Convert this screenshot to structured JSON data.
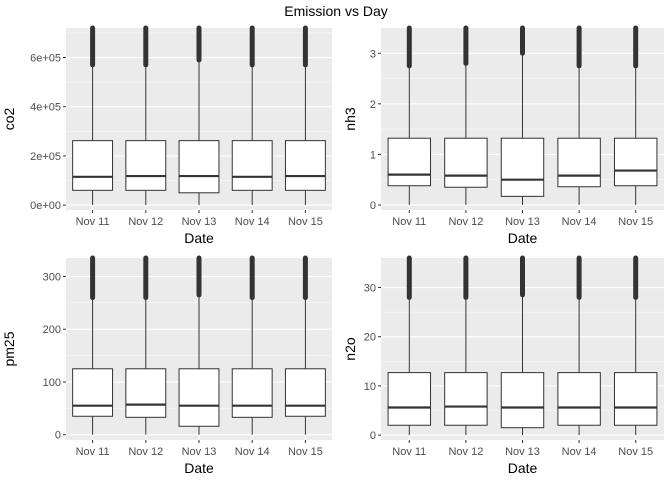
{
  "figure": {
    "title": "Emission vs Day"
  },
  "chart_data": [
    {
      "type": "boxplot",
      "ylabel": "co2",
      "xlabel": "Date",
      "categories": [
        "Nov 11",
        "Nov 12",
        "Nov 13",
        "Nov 14",
        "Nov 15"
      ],
      "ylim": [
        -20000,
        720000
      ],
      "yticks": [
        0,
        200000,
        400000,
        600000
      ],
      "ytick_labels": [
        "0e+00",
        "2e+05",
        "4e+05",
        "6e+05"
      ],
      "boxes": [
        {
          "q1": 60000,
          "median": 115000,
          "q3": 262000,
          "whisker_low": 0,
          "whisker_high": 570000,
          "outlier_top": 720000
        },
        {
          "q1": 60000,
          "median": 118000,
          "q3": 262000,
          "whisker_low": 0,
          "whisker_high": 570000,
          "outlier_top": 720000
        },
        {
          "q1": 50000,
          "median": 118000,
          "q3": 262000,
          "whisker_low": 0,
          "whisker_high": 590000,
          "outlier_top": 720000
        },
        {
          "q1": 60000,
          "median": 115000,
          "q3": 262000,
          "whisker_low": 0,
          "whisker_high": 570000,
          "outlier_top": 720000
        },
        {
          "q1": 60000,
          "median": 118000,
          "q3": 262000,
          "whisker_low": 0,
          "whisker_high": 570000,
          "outlier_top": 720000
        }
      ]
    },
    {
      "type": "boxplot",
      "ylabel": "nh3",
      "xlabel": "Date",
      "categories": [
        "Nov 11",
        "Nov 12",
        "Nov 13",
        "Nov 14",
        "Nov 15"
      ],
      "ylim": [
        -0.1,
        3.5
      ],
      "yticks": [
        0,
        1,
        2,
        3
      ],
      "ytick_labels": [
        "0",
        "1",
        "2",
        "3"
      ],
      "boxes": [
        {
          "q1": 0.38,
          "median": 0.6,
          "q3": 1.32,
          "whisker_low": 0,
          "whisker_high": 2.75,
          "outlier_top": 3.5
        },
        {
          "q1": 0.35,
          "median": 0.58,
          "q3": 1.32,
          "whisker_low": 0,
          "whisker_high": 2.8,
          "outlier_top": 3.5
        },
        {
          "q1": 0.17,
          "median": 0.5,
          "q3": 1.32,
          "whisker_low": 0,
          "whisker_high": 3.0,
          "outlier_top": 3.5
        },
        {
          "q1": 0.36,
          "median": 0.58,
          "q3": 1.32,
          "whisker_low": 0,
          "whisker_high": 2.75,
          "outlier_top": 3.5
        },
        {
          "q1": 0.38,
          "median": 0.68,
          "q3": 1.32,
          "whisker_low": 0,
          "whisker_high": 2.75,
          "outlier_top": 3.5
        }
      ]
    },
    {
      "type": "boxplot",
      "ylabel": "pm25",
      "xlabel": "Date",
      "categories": [
        "Nov 11",
        "Nov 12",
        "Nov 13",
        "Nov 14",
        "Nov 15"
      ],
      "ylim": [
        -10,
        335
      ],
      "yticks": [
        0,
        100,
        200,
        300
      ],
      "ytick_labels": [
        "0",
        "100",
        "200",
        "300"
      ],
      "boxes": [
        {
          "q1": 35,
          "median": 55,
          "q3": 125,
          "whisker_low": 0,
          "whisker_high": 260,
          "outlier_top": 335
        },
        {
          "q1": 33,
          "median": 57,
          "q3": 125,
          "whisker_low": 0,
          "whisker_high": 260,
          "outlier_top": 335
        },
        {
          "q1": 16,
          "median": 55,
          "q3": 125,
          "whisker_low": 0,
          "whisker_high": 265,
          "outlier_top": 335
        },
        {
          "q1": 33,
          "median": 55,
          "q3": 125,
          "whisker_low": 0,
          "whisker_high": 260,
          "outlier_top": 335
        },
        {
          "q1": 35,
          "median": 55,
          "q3": 125,
          "whisker_low": 0,
          "whisker_high": 260,
          "outlier_top": 335
        }
      ]
    },
    {
      "type": "boxplot",
      "ylabel": "n2o",
      "xlabel": "Date",
      "categories": [
        "Nov 11",
        "Nov 12",
        "Nov 13",
        "Nov 14",
        "Nov 15"
      ],
      "ylim": [
        -1,
        36
      ],
      "yticks": [
        0,
        10,
        20,
        30
      ],
      "ytick_labels": [
        "0",
        "10",
        "20",
        "30"
      ],
      "boxes": [
        {
          "q1": 2.0,
          "median": 5.6,
          "q3": 12.7,
          "whisker_low": 0,
          "whisker_high": 28.0,
          "outlier_top": 36
        },
        {
          "q1": 2.0,
          "median": 5.8,
          "q3": 12.7,
          "whisker_low": 0,
          "whisker_high": 28.0,
          "outlier_top": 36
        },
        {
          "q1": 1.5,
          "median": 5.6,
          "q3": 12.7,
          "whisker_low": 0,
          "whisker_high": 28.5,
          "outlier_top": 36
        },
        {
          "q1": 2.0,
          "median": 5.6,
          "q3": 12.7,
          "whisker_low": 0,
          "whisker_high": 28.0,
          "outlier_top": 36
        },
        {
          "q1": 2.0,
          "median": 5.6,
          "q3": 12.7,
          "whisker_low": 0,
          "whisker_high": 28.0,
          "outlier_top": 36
        }
      ]
    }
  ]
}
